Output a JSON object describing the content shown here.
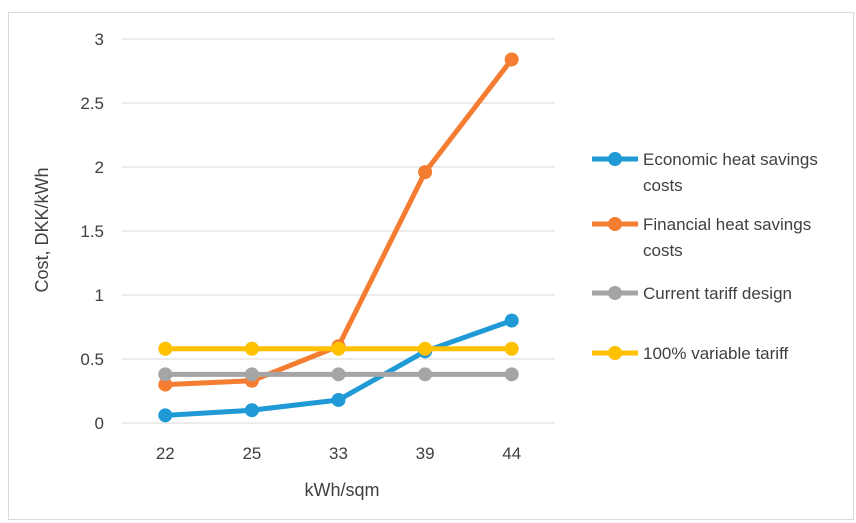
{
  "chart_data": {
    "type": "line",
    "categories": [
      "22",
      "25",
      "33",
      "39",
      "44"
    ],
    "xlabel": "kWh/sqm",
    "ylabel": "Cost, DKK/kWh",
    "ylim": [
      0,
      3
    ],
    "yticks": [
      "0",
      "0.5",
      "1",
      "1.5",
      "2",
      "2.5",
      "3"
    ],
    "grid": "horizontal",
    "legend_position": "right",
    "series": [
      {
        "name": "Economic heat savings costs",
        "legend_lines": [
          "Economic heat savings",
          "costs"
        ],
        "color": "#1f9ad6",
        "values": [
          0.06,
          0.1,
          0.18,
          0.56,
          0.8
        ]
      },
      {
        "name": "Financial heat savings costs",
        "legend_lines": [
          "Financial heat savings",
          "costs"
        ],
        "color": "#f47d31",
        "values": [
          0.3,
          0.33,
          0.6,
          1.96,
          2.84
        ]
      },
      {
        "name": "Current tariff design",
        "legend_lines": [
          "Current tariff design"
        ],
        "color": "#a5a5a5",
        "values": [
          0.38,
          0.38,
          0.38,
          0.38,
          0.38
        ]
      },
      {
        "name": "100% variable tariff",
        "legend_lines": [
          "100% variable tariff"
        ],
        "color": "#ffc000",
        "values": [
          0.58,
          0.58,
          0.58,
          0.58,
          0.58
        ]
      }
    ]
  }
}
